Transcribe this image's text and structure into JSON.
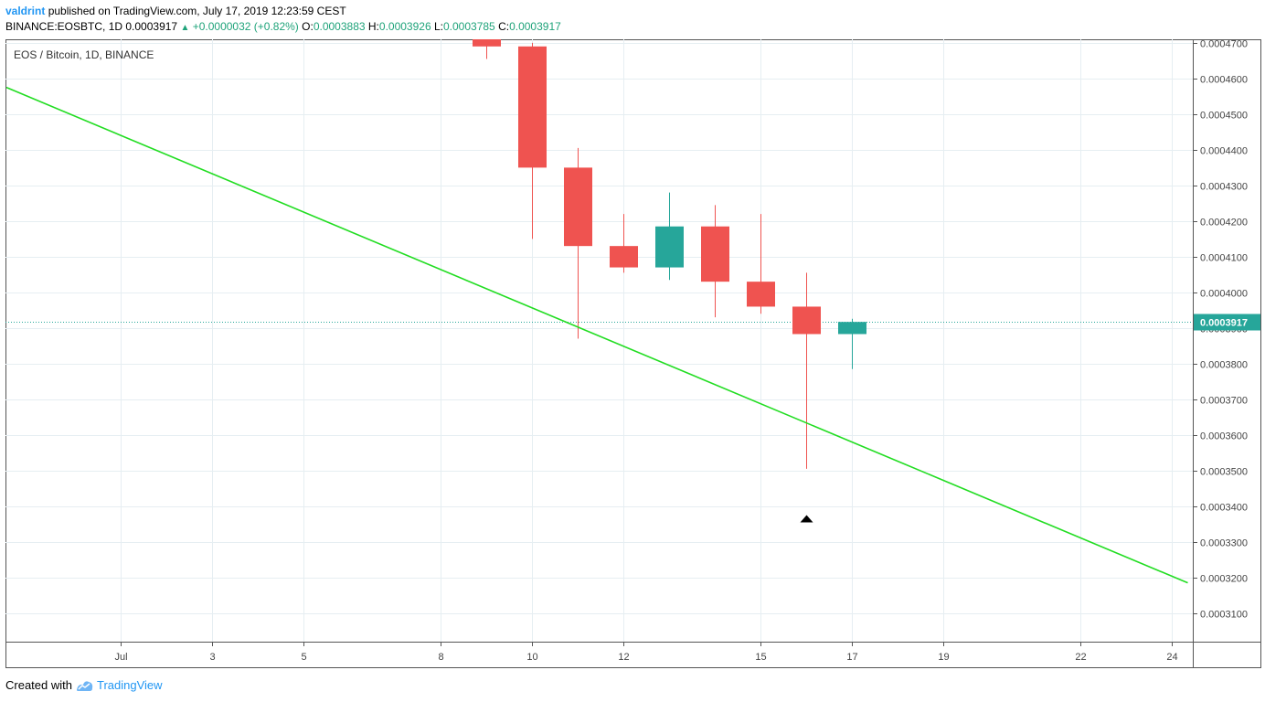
{
  "header": {
    "user": "valdrint",
    "published_text": "published on TradingView.com, July 17, 2019 12:23:59 CEST",
    "symbol_tf": "BINANCE:EOSBTC, 1D",
    "last": "0.0003917",
    "change_arrow": "▲",
    "change": "+0.0000032 (+0.82%)",
    "o_label": "O:",
    "o_value": "0.0003883",
    "h_label": "H:",
    "h_value": "0.0003926",
    "l_label": "L:",
    "l_value": "0.0003785",
    "c_label": "C:",
    "c_value": "0.0003917"
  },
  "footer": {
    "created_with": "Created with",
    "brand": "TradingView"
  },
  "colors": {
    "up": "#26a69a",
    "down": "#ef5350",
    "trendline": "#22dd22",
    "price_line": "#26a69a",
    "grid": "#e6eef2"
  },
  "chart_data": {
    "type": "candlestick",
    "legend": "EOS / Bitcoin, 1D, BINANCE",
    "ylim": [
      0.000302,
      0.000471
    ],
    "y_ticks": [
      "0.0004700",
      "0.0004600",
      "0.0004500",
      "0.0004400",
      "0.0004300",
      "0.0004200",
      "0.0004100",
      "0.0004000",
      "0.0003900",
      "0.0003800",
      "0.0003700",
      "0.0003600",
      "0.0003500",
      "0.0003400",
      "0.0003300",
      "0.0003200",
      "0.0003100"
    ],
    "x_ticks": [
      {
        "label": "Jul",
        "day": 1
      },
      {
        "label": "3",
        "day": 3
      },
      {
        "label": "5",
        "day": 5
      },
      {
        "label": "8",
        "day": 8
      },
      {
        "label": "10",
        "day": 10
      },
      {
        "label": "12",
        "day": 12
      },
      {
        "label": "15",
        "day": 15
      },
      {
        "label": "17",
        "day": 17
      },
      {
        "label": "19",
        "day": 19
      },
      {
        "label": "22",
        "day": 22
      },
      {
        "label": "24",
        "day": 24
      }
    ],
    "candles": [
      {
        "day": 9,
        "open": 0.000474,
        "high": 0.000478,
        "low": 0.0004655,
        "close": 0.000469
      },
      {
        "day": 10,
        "open": 0.000469,
        "high": 0.00047,
        "low": 0.000415,
        "close": 0.000435
      },
      {
        "day": 11,
        "open": 0.000435,
        "high": 0.0004405,
        "low": 0.000387,
        "close": 0.000413
      },
      {
        "day": 12,
        "open": 0.000413,
        "high": 0.000422,
        "low": 0.0004055,
        "close": 0.000407
      },
      {
        "day": 13,
        "open": 0.000407,
        "high": 0.000428,
        "low": 0.0004035,
        "close": 0.0004185
      },
      {
        "day": 14,
        "open": 0.0004185,
        "high": 0.0004245,
        "low": 0.000393,
        "close": 0.000403
      },
      {
        "day": 15,
        "open": 0.000403,
        "high": 0.000422,
        "low": 0.000394,
        "close": 0.000396
      },
      {
        "day": 16,
        "open": 0.000396,
        "high": 0.0004055,
        "low": 0.0003505,
        "close": 0.0003883
      },
      {
        "day": 17,
        "open": 0.0003883,
        "high": 0.0003926,
        "low": 0.0003785,
        "close": 0.0003917
      }
    ],
    "last_price": "0.0003917",
    "trendline": {
      "start_day": -1.5,
      "start_value": 0.0004575,
      "end_day": 24.35,
      "end_value": 0.0003185
    },
    "marker": {
      "type": "triangle-up",
      "day": 16,
      "value": 0.0003365
    }
  }
}
